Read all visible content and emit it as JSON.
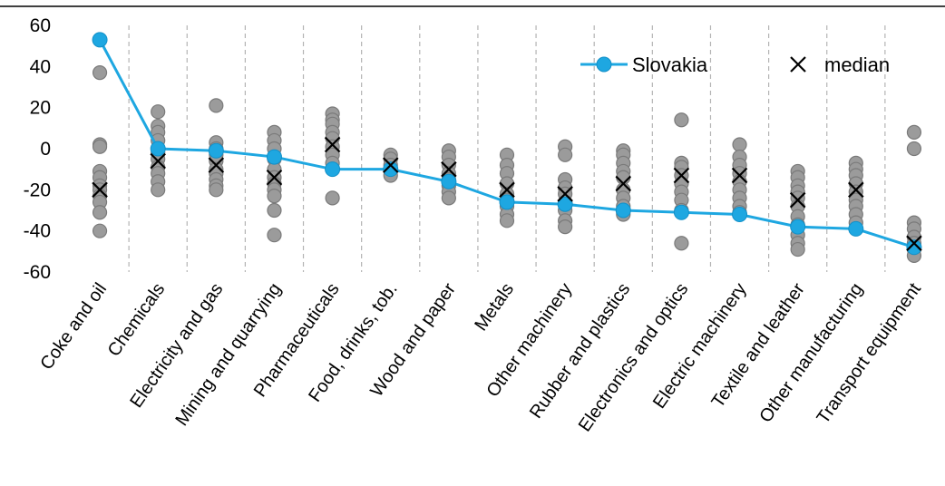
{
  "chart_data": {
    "type": "scatter",
    "title": "",
    "xlabel": "",
    "ylabel": "",
    "ylim": [
      -60,
      60
    ],
    "yticks": [
      60,
      40,
      20,
      0,
      -20,
      -40,
      -60
    ],
    "grid": "vertical dashed",
    "legend_position": "top-right",
    "categories": [
      "Coke and oil",
      "Chemicals",
      "Electricity and gas",
      "Mining and quarrying",
      "Pharmaceuticals",
      "Food, drinks, tob.",
      "Wood and paper",
      "Metals",
      "Other machinery",
      "Rubber and plastics",
      "Electronics and optics",
      "Electric machinery",
      "Textile and leather",
      "Other manufacturing",
      "Transport equipment"
    ],
    "series": [
      {
        "name": "Slovakia",
        "kind": "line",
        "values": [
          53,
          0,
          -1,
          -4,
          -10,
          -10,
          -16,
          -26,
          -27,
          -30,
          -31,
          -32,
          -38,
          -39,
          -48
        ]
      },
      {
        "name": "median",
        "kind": "marker",
        "values": [
          -20,
          -6,
          -8,
          -14,
          2,
          -8,
          -10,
          -20,
          -22,
          -17,
          -13,
          -13,
          -25,
          -20,
          -46
        ]
      }
    ],
    "other_countries": [
      [
        37,
        2,
        1,
        -11,
        -14,
        -18,
        -20,
        -23,
        -26,
        -31,
        -40
      ],
      [
        18,
        11,
        8,
        4,
        -2,
        -5,
        -9,
        -12,
        -16,
        -20
      ],
      [
        21,
        3,
        0,
        -3,
        -6,
        -10,
        -12,
        -15,
        -18,
        -20
      ],
      [
        8,
        4,
        0,
        -5,
        -10,
        -14,
        -17,
        -20,
        -23,
        -30,
        -42
      ],
      [
        17,
        14,
        12,
        8,
        5,
        1,
        -3,
        -7,
        -24
      ],
      [
        -3,
        -5,
        -8,
        -11,
        -13
      ],
      [
        -1,
        -4,
        -8,
        -12,
        -15,
        -18,
        -21,
        -24
      ],
      [
        -3,
        -8,
        -12,
        -17,
        -22,
        -25,
        -28,
        -32,
        -35
      ],
      [
        1,
        -3,
        -15,
        -19,
        -22,
        -26,
        -30,
        -35,
        -38
      ],
      [
        -1,
        -3,
        -7,
        -11,
        -14,
        -20,
        -24,
        -28,
        -32
      ],
      [
        14,
        -7,
        -9,
        -13,
        -17,
        -21,
        -25,
        -30,
        -46
      ],
      [
        2,
        -4,
        -8,
        -12,
        -16,
        -20,
        -24,
        -28,
        -31
      ],
      [
        -11,
        -14,
        -18,
        -21,
        -24,
        -28,
        -33,
        -37,
        -42,
        -46,
        -49
      ],
      [
        -7,
        -10,
        -13,
        -17,
        -21,
        -25,
        -28,
        -32,
        -36
      ],
      [
        8,
        0,
        -36,
        -39,
        -43,
        -46,
        -49,
        -52
      ]
    ],
    "colors": {
      "slovakia": "#1ea7e1",
      "others_fill": "#9b9b9b",
      "others_stroke": "#7a7a7a",
      "median_marker": "#000000",
      "grid": "#b4b4b4",
      "axis": "#000000"
    }
  }
}
